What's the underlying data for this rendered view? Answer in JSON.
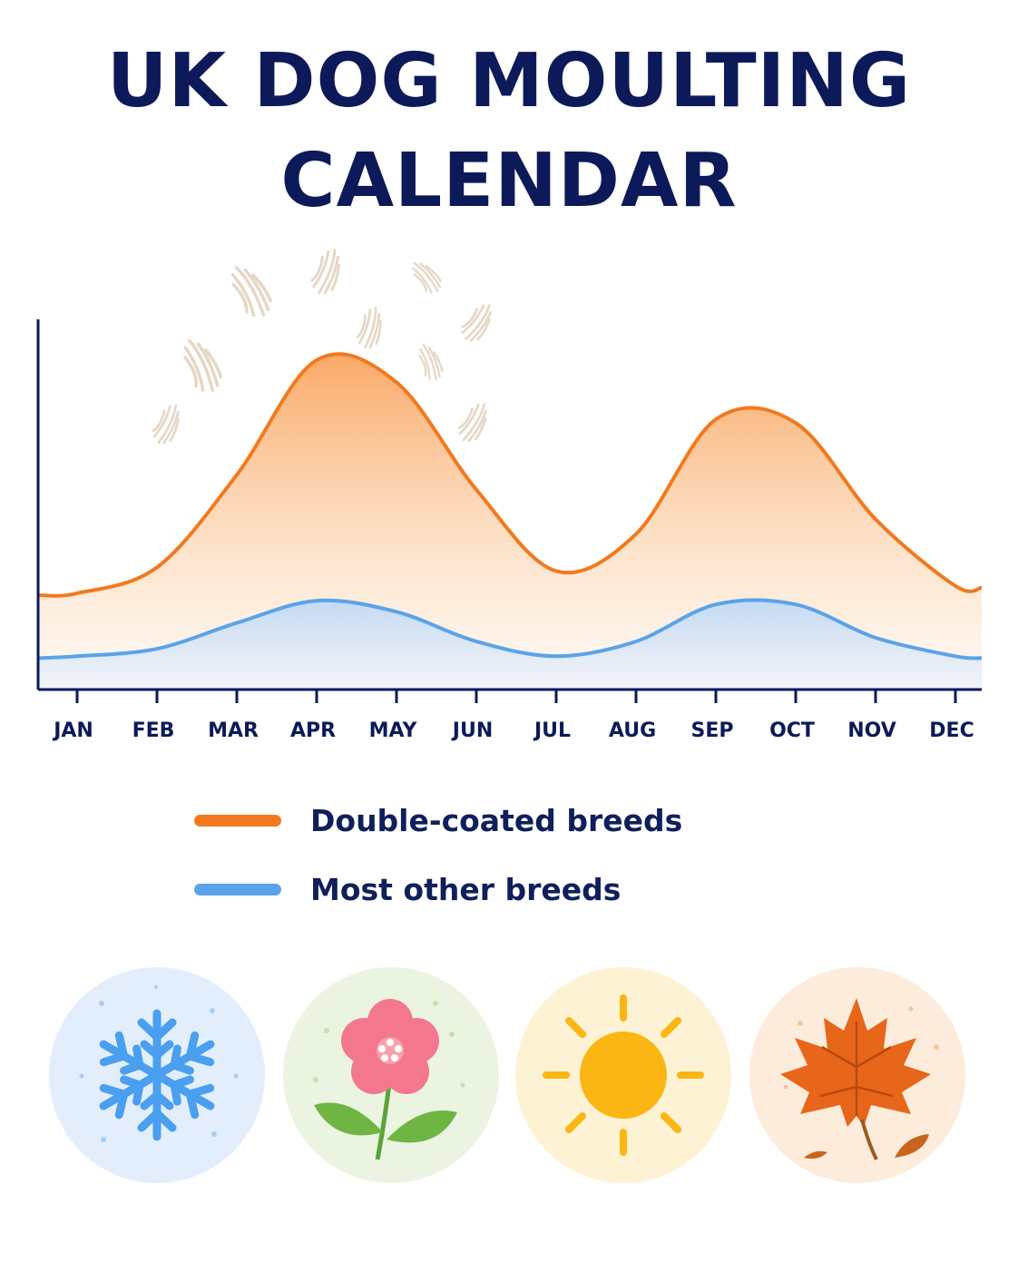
{
  "title": {
    "line1": "UK DOG MOULTING",
    "line2": "CALENDAR"
  },
  "chart_data": {
    "type": "area",
    "categories": [
      "JAN",
      "FEB",
      "MAR",
      "APR",
      "MAY",
      "JUN",
      "JUL",
      "AUG",
      "SEP",
      "OCT",
      "NOV",
      "DEC"
    ],
    "xlabel": "",
    "ylabel": "",
    "ylim": [
      0,
      100
    ],
    "grid": false,
    "legend_position": "bottom",
    "series": [
      {
        "name": "Double-coated breeds",
        "color": "#f2791e",
        "values": [
          26,
          33,
          58,
          89,
          83,
          54,
          32,
          42,
          73,
          72,
          46,
          28
        ]
      },
      {
        "name": "Most other breeds",
        "color": "#5aa3ea",
        "values": [
          9,
          11,
          18,
          24,
          21,
          13,
          9,
          13,
          23,
          23,
          14,
          9
        ]
      }
    ]
  },
  "legend": {
    "items": [
      {
        "label": "Double-coated breeds",
        "color": "#f2791e"
      },
      {
        "label": "Most other breeds",
        "color": "#5aa3ea"
      }
    ]
  },
  "seasons": [
    {
      "name": "winter",
      "icon": "snowflake-icon",
      "bg": "#e3eefc",
      "color": "#4a9ff0"
    },
    {
      "name": "spring",
      "icon": "flower-icon",
      "bg": "#ebf4e1",
      "color": "#f4788d"
    },
    {
      "name": "summer",
      "icon": "sun-icon",
      "bg": "#fdf3d4",
      "color": "#fbb614"
    },
    {
      "name": "autumn",
      "icon": "maple-leaf-icon",
      "bg": "#fdecdc",
      "color": "#e8661a"
    }
  ],
  "decorations": {
    "floating_hair": "fur-tuft-icon"
  }
}
